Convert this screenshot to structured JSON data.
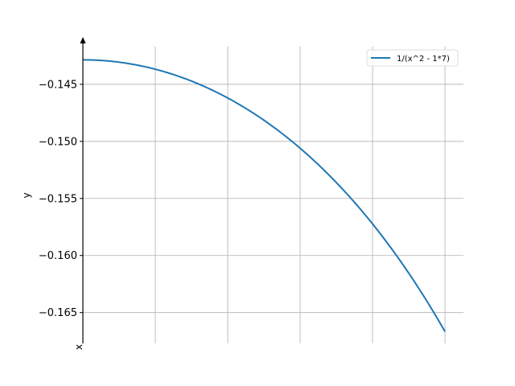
{
  "chart_data": {
    "type": "line",
    "title": "",
    "xlabel": "x",
    "ylabel": "y",
    "function": "1/(x^2 - 1*7)",
    "xlim": [
      0,
      1
    ],
    "ylim": [
      -0.1677,
      -0.1417
    ],
    "yticks": [
      -0.145,
      -0.15,
      -0.155,
      -0.16,
      -0.165
    ],
    "ytick_labels": [
      "−0.145",
      "−0.150",
      "−0.155",
      "−0.160",
      "−0.165"
    ],
    "xgrid": [
      0.2,
      0.4,
      0.6,
      0.8,
      1.0
    ],
    "grid": true,
    "legend_position": "top-right",
    "series": [
      {
        "name": "1/(x^2 - 1*7)",
        "color": "#1f77b4",
        "x": [
          0.0,
          0.1,
          0.2,
          0.3,
          0.4,
          0.5,
          0.6,
          0.7,
          0.8,
          0.9,
          1.0
        ],
        "y": [
          -0.14286,
          -0.14306,
          -0.14368,
          -0.14472,
          -0.1462,
          -0.14815,
          -0.1506,
          -0.1536,
          -0.15723,
          -0.16155,
          -0.16667
        ]
      }
    ]
  }
}
